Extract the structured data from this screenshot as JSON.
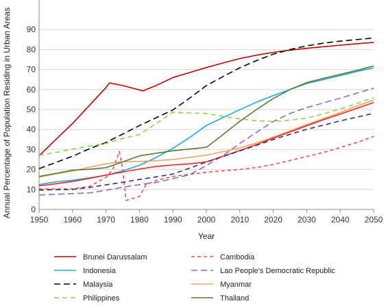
{
  "chart_data": {
    "type": "line",
    "xlabel": "Year",
    "ylabel": "Annual Percentage of Population Residing in Urban Areas",
    "xlim": [
      1950,
      2050
    ],
    "ylim": [
      0,
      100
    ],
    "x_ticks": [
      "1950",
      "1960",
      "1970",
      "1980",
      "1990",
      "2000",
      "2010",
      "2020",
      "2030",
      "2040",
      "2050"
    ],
    "y_ticks": [
      "0",
      "10",
      "20",
      "30",
      "40",
      "50",
      "60",
      "70",
      "80",
      "90"
    ],
    "grid": "horizontal",
    "legend_position": "bottom",
    "series": [
      {
        "name": "Brunei Darussalam",
        "color": "#c00000",
        "dash": "solid",
        "points": [
          [
            1950,
            26.8
          ],
          [
            1955,
            35
          ],
          [
            1960,
            43
          ],
          [
            1965,
            52
          ],
          [
            1970,
            61
          ],
          [
            1971,
            63.3
          ],
          [
            1975,
            62
          ],
          [
            1980,
            59.8
          ],
          [
            1981,
            59.3
          ],
          [
            1985,
            62
          ],
          [
            1990,
            66
          ],
          [
            1995,
            68.5
          ],
          [
            2000,
            71
          ],
          [
            2005,
            73.3
          ],
          [
            2010,
            75.5
          ],
          [
            2015,
            77.2
          ],
          [
            2020,
            78.6
          ],
          [
            2025,
            79.7
          ],
          [
            2030,
            80.6
          ],
          [
            2035,
            81.4
          ],
          [
            2040,
            82.2
          ],
          [
            2045,
            82.9
          ],
          [
            2050,
            83.6
          ]
        ]
      },
      {
        "name": "Cambodia",
        "color": "#e05050",
        "dash": "5,4",
        "points": [
          [
            1950,
            10.2
          ],
          [
            1955,
            10.2
          ],
          [
            1960,
            10.3
          ],
          [
            1965,
            11.5
          ],
          [
            1970,
            16
          ],
          [
            1972,
            20
          ],
          [
            1974,
            29
          ],
          [
            1975,
            20
          ],
          [
            1976,
            4.5
          ],
          [
            1978,
            5.5
          ],
          [
            1980,
            6.5
          ],
          [
            1982,
            12.5
          ],
          [
            1985,
            14.5
          ],
          [
            1990,
            16.5
          ],
          [
            1995,
            17.6
          ],
          [
            2000,
            18.6
          ],
          [
            2005,
            19.3
          ],
          [
            2010,
            20
          ],
          [
            2015,
            21
          ],
          [
            2020,
            22.5
          ],
          [
            2025,
            24.5
          ],
          [
            2030,
            26.5
          ],
          [
            2035,
            28.5
          ],
          [
            2040,
            31
          ],
          [
            2045,
            33.5
          ],
          [
            2050,
            36.5
          ]
        ]
      },
      {
        "name": "Indonesia",
        "color": "#1aa8e0",
        "dash": "solid",
        "points": [
          [
            1950,
            12.4
          ],
          [
            1955,
            13.8
          ],
          [
            1960,
            14.6
          ],
          [
            1965,
            15.8
          ],
          [
            1970,
            17.1
          ],
          [
            1975,
            19.3
          ],
          [
            1980,
            22.1
          ],
          [
            1985,
            26
          ],
          [
            1990,
            30.6
          ],
          [
            1995,
            36
          ],
          [
            2000,
            42
          ],
          [
            2005,
            46
          ],
          [
            2010,
            49.9
          ],
          [
            2015,
            53.7
          ],
          [
            2020,
            57
          ],
          [
            2025,
            60
          ],
          [
            2030,
            63
          ],
          [
            2035,
            65
          ],
          [
            2040,
            67
          ],
          [
            2045,
            69
          ],
          [
            2050,
            70.9
          ]
        ]
      },
      {
        "name": "Lao People's Democratic Republic",
        "color": "#8e6ab0",
        "dash": "9,5",
        "points": [
          [
            1950,
            7.2
          ],
          [
            1955,
            7.6
          ],
          [
            1960,
            7.9
          ],
          [
            1965,
            8.3
          ],
          [
            1970,
            9.6
          ],
          [
            1975,
            11.1
          ],
          [
            1980,
            12.4
          ],
          [
            1985,
            13.5
          ],
          [
            1990,
            15.4
          ],
          [
            1995,
            17.4
          ],
          [
            2000,
            22
          ],
          [
            2005,
            27
          ],
          [
            2010,
            33
          ],
          [
            2015,
            38.6
          ],
          [
            2020,
            44
          ],
          [
            2025,
            48
          ],
          [
            2030,
            51
          ],
          [
            2035,
            53.3
          ],
          [
            2040,
            55.7
          ],
          [
            2045,
            58.2
          ],
          [
            2050,
            60.7
          ]
        ]
      },
      {
        "name": "Malaysia",
        "color": "#000000",
        "dash": "9,5",
        "points": [
          [
            1950,
            20.4
          ],
          [
            1955,
            23.5
          ],
          [
            1960,
            26.6
          ],
          [
            1965,
            30.3
          ],
          [
            1970,
            33.5
          ],
          [
            1975,
            37.7
          ],
          [
            1980,
            42
          ],
          [
            1985,
            45.9
          ],
          [
            1990,
            49.8
          ],
          [
            1995,
            55.7
          ],
          [
            2000,
            62
          ],
          [
            2005,
            66.5
          ],
          [
            2010,
            70.9
          ],
          [
            2015,
            74.5
          ],
          [
            2020,
            77.7
          ],
          [
            2025,
            80
          ],
          [
            2030,
            81.9
          ],
          [
            2035,
            83.2
          ],
          [
            2040,
            84.2
          ],
          [
            2045,
            85
          ],
          [
            2050,
            85.8
          ]
        ]
      },
      {
        "name": "Myanmar",
        "color": "#f0a060",
        "dash": "solid",
        "points": [
          [
            1950,
            16.2
          ],
          [
            1955,
            17.8
          ],
          [
            1960,
            19.2
          ],
          [
            1965,
            21.1
          ],
          [
            1970,
            22.8
          ],
          [
            1975,
            23.9
          ],
          [
            1980,
            24
          ],
          [
            1985,
            24.4
          ],
          [
            1990,
            25
          ],
          [
            1995,
            26
          ],
          [
            2000,
            27.2
          ],
          [
            2005,
            28.9
          ],
          [
            2010,
            30.8
          ],
          [
            2015,
            33.3
          ],
          [
            2020,
            36.2
          ],
          [
            2025,
            39.3
          ],
          [
            2030,
            42.5
          ],
          [
            2035,
            45.5
          ],
          [
            2040,
            48.5
          ],
          [
            2045,
            51.8
          ],
          [
            2050,
            54.7
          ]
        ]
      },
      {
        "name": "Philippines",
        "color": "#90d050",
        "dash": "7,5",
        "points": [
          [
            1950,
            27.1
          ],
          [
            1955,
            28.5
          ],
          [
            1960,
            30.3
          ],
          [
            1965,
            31.6
          ],
          [
            1970,
            33
          ],
          [
            1975,
            35.5
          ],
          [
            1980,
            37.5
          ],
          [
            1985,
            43
          ],
          [
            1990,
            48.6
          ],
          [
            1995,
            48.3
          ],
          [
            2000,
            48
          ],
          [
            2005,
            46.6
          ],
          [
            2010,
            45.3
          ],
          [
            2015,
            44.4
          ],
          [
            2020,
            44
          ],
          [
            2025,
            44.7
          ],
          [
            2030,
            45.7
          ],
          [
            2035,
            47.8
          ],
          [
            2040,
            50.3
          ],
          [
            2045,
            53
          ],
          [
            2050,
            56
          ]
        ]
      },
      {
        "name": "Thailand",
        "color": "#5a7a30",
        "dash": "solid",
        "points": [
          [
            1950,
            16.5
          ],
          [
            1955,
            18
          ],
          [
            1960,
            19.7
          ],
          [
            1965,
            20.1
          ],
          [
            1970,
            20.9
          ],
          [
            1975,
            23.8
          ],
          [
            1980,
            26.8
          ],
          [
            1985,
            28.1
          ],
          [
            1990,
            29.4
          ],
          [
            1995,
            30.2
          ],
          [
            2000,
            31.1
          ],
          [
            2005,
            37.5
          ],
          [
            2010,
            44.1
          ],
          [
            2015,
            50
          ],
          [
            2020,
            55.5
          ],
          [
            2025,
            60
          ],
          [
            2030,
            63.5
          ],
          [
            2035,
            65.6
          ],
          [
            2040,
            67.6
          ],
          [
            2045,
            69.6
          ],
          [
            2050,
            71.8
          ]
        ]
      },
      {
        "name": "",
        "color": "#ff2020",
        "dash": "solid",
        "points": [
          [
            1950,
            11.8
          ],
          [
            1955,
            12.8
          ],
          [
            1960,
            14
          ],
          [
            1965,
            15.5
          ],
          [
            1970,
            17.2
          ],
          [
            1975,
            18.7
          ],
          [
            1980,
            20.2
          ],
          [
            1985,
            21.5
          ],
          [
            1990,
            22.3
          ],
          [
            1995,
            22.8
          ],
          [
            2000,
            23.8
          ],
          [
            2005,
            26.6
          ],
          [
            2010,
            29.5
          ],
          [
            2015,
            32.5
          ],
          [
            2020,
            35.7
          ],
          [
            2025,
            38.8
          ],
          [
            2030,
            41.9
          ],
          [
            2035,
            44.9
          ],
          [
            2040,
            47.7
          ],
          [
            2045,
            50.6
          ],
          [
            2050,
            53.5
          ]
        ]
      },
      {
        "name": "",
        "color": "#3a2a60",
        "dash": "7,5",
        "points": [
          [
            1950,
            9.7
          ],
          [
            1955,
            9.9
          ],
          [
            1960,
            10
          ],
          [
            1965,
            11
          ],
          [
            1970,
            12.3
          ],
          [
            1975,
            13.6
          ],
          [
            1980,
            15
          ],
          [
            1985,
            16.3
          ],
          [
            1990,
            17.7
          ],
          [
            1995,
            20.7
          ],
          [
            2000,
            23.7
          ],
          [
            2005,
            26.5
          ],
          [
            2010,
            29.3
          ],
          [
            2015,
            32.1
          ],
          [
            2020,
            35
          ],
          [
            2025,
            37.6
          ],
          [
            2030,
            40.1
          ],
          [
            2035,
            42.2
          ],
          [
            2040,
            44.3
          ],
          [
            2045,
            46.2
          ],
          [
            2050,
            48.1
          ]
        ]
      }
    ]
  }
}
